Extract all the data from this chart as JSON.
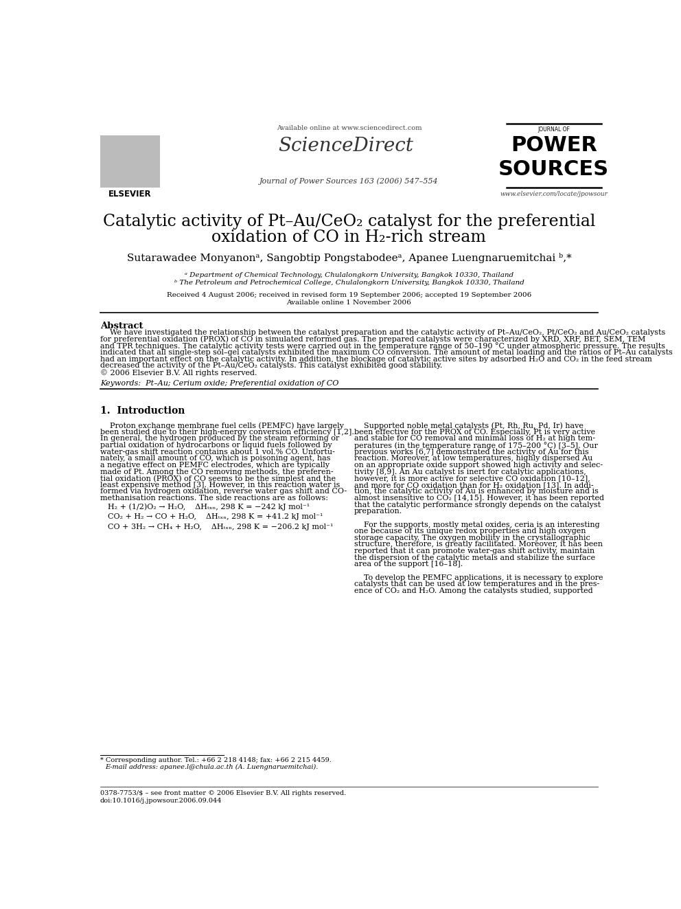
{
  "bg_color": "#ffffff",
  "header_available": "Available online at www.sciencedirect.com",
  "header_sciencedirect": "ScienceDirect",
  "header_journal_line": "Journal of Power Sources 163 (2006) 547–554",
  "header_website": "www.elsevier.com/locate/jpowsour",
  "elsevier_label": "ELSEVIER",
  "journal_logo_line1": "JOURNAL OF",
  "journal_logo_line2": "POWER",
  "journal_logo_line3": "SOURCES",
  "title_line1": "Catalytic activity of Pt–Au/CeO₂ catalyst for the preferential",
  "title_line2": "oxidation of CO in H₂-rich stream",
  "authors": "Sutarawadee Monyanonᵃ, Sangobtip Pongstabodeeᵃ, Apanee Luengnaruemitchai ᵇ,*",
  "affil_a": "ᵃ Department of Chemical Technology, Chulalongkorn University, Bangkok 10330, Thailand",
  "affil_b": "ᵇ The Petroleum and Petrochemical College, Chulalongkorn University, Bangkok 10330, Thailand",
  "received": "Received 4 August 2006; received in revised form 19 September 2006; accepted 19 September 2006",
  "available_online": "Available online 1 November 2006",
  "abstract_title": "Abstract",
  "abstract_lines": [
    "    We have investigated the relationship between the catalyst preparation and the catalytic activity of Pt–Au/CeO₂, Pt/CeO₂ and Au/CeO₂ catalysts",
    "for preferential oxidation (PROX) of CO in simulated reformed gas. The prepared catalysts were characterized by XRD, XRF, BET, SEM, TEM",
    "and TPR techniques. The catalytic activity tests were carried out in the temperature range of 50–190 °C under atmospheric pressure. The results",
    "indicated that all single-step sol–gel catalysts exhibited the maximum CO conversion. The amount of metal loading and the ratios of Pt–Au catalysts",
    "had an important effect on the catalytic activity. In addition, the blockage of catalytic active sites by adsorbed H₂O and CO₂ in the feed stream",
    "decreased the activity of the Pt–Au/CeO₂ catalysts. This catalyst exhibited good stability.",
    "© 2006 Elsevier B.V. All rights reserved."
  ],
  "keywords": "Keywords:  Pt–Au; Cerium oxide; Preferential oxidation of CO",
  "section1_title": "1.  Introduction",
  "left_col_lines": [
    "    Proton exchange membrane fuel cells (PEMFC) have largely",
    "been studied due to their high-energy conversion efficiency [1,2].",
    "In general, the hydrogen produced by the steam reforming or",
    "partial oxidation of hydrocarbons or liquid fuels followed by",
    "water-gas shift reaction contains about 1 vol.% CO. Unfortu-",
    "nately, a small amount of CO, which is poisoning agent, has",
    "a negative effect on PEMFC electrodes, which are typically",
    "made of Pt. Among the CO removing methods, the preferen-",
    "tial oxidation (PROX) of CO seems to be the simplest and the",
    "least expensive method [3]. However, in this reaction water is",
    "formed via hydrogen oxidation, reverse water gas shift and CO-",
    "methanisation reactions. The side reactions are as follows:"
  ],
  "eq1": "H₂ + (1/2)O₂ → H₂O,    ΔHₜₓₙ, 298 K = −242 kJ mol⁻¹",
  "eq2": "CO₂ + H₂ → CO + H₂O,    ΔHₜₓₙ, 298 K = +41.2 kJ mol⁻¹",
  "eq3": "CO + 3H₂ → CH₄ + H₂O,    ΔHₜₓₙ, 298 K = −206.2 kJ mol⁻¹",
  "right_col_lines": [
    "    Supported noble metal catalysts (Pt, Rh, Ru, Pd, Ir) have",
    "been effective for the PROX of CO. Especially, Pt is very active",
    "and stable for CO removal and minimal loss of H₂ at high tem-",
    "peratures (in the temperature range of 175–200 °C) [3–5]. Our",
    "previous works [6,7] demonstrated the activity of Au for this",
    "reaction. Moreover, at low temperatures, highly dispersed Au",
    "on an appropriate oxide support showed high activity and selec-",
    "tivity [8,9]. An Au catalyst is inert for catalytic applications,",
    "however, it is more active for selective CO oxidation [10–12],",
    "and more for CO oxidation than for H₂ oxidation [13]. In addi-",
    "tion, the catalytic activity of Au is enhanced by moisture and is",
    "almost insensitive to CO₂ [14,15]. However, it has been reported",
    "that the catalytic performance strongly depends on the catalyst",
    "preparation.",
    "",
    "    For the supports, mostly metal oxides, ceria is an interesting",
    "one because of its unique redox properties and high oxygen",
    "storage capacity. The oxygen mobility in the crystallographic",
    "structure, therefore, is greatly facilitated. Moreover, it has been",
    "reported that it can promote water-gas shift activity, maintain",
    "the dispersion of the catalytic metals and stabilize the surface",
    "area of the support [16–18].",
    "",
    "    To develop the PEMFC applications, it is necessary to explore",
    "catalysts that can be used at low temperatures and in the pres-",
    "ence of CO₂ and H₂O. Among the catalysts studied, supported"
  ],
  "footnote1": "* Corresponding author. Tel.: +66 2 218 4148; fax: +66 2 215 4459.",
  "footnote2": "E-mail address: apanee.l@chula.ac.th (A. Luengnaruemitchai).",
  "footer1": "0378-7753/$ – see front matter © 2006 Elsevier B.V. All rights reserved.",
  "footer2": "doi:10.1016/j.jpowsour.2006.09.044"
}
